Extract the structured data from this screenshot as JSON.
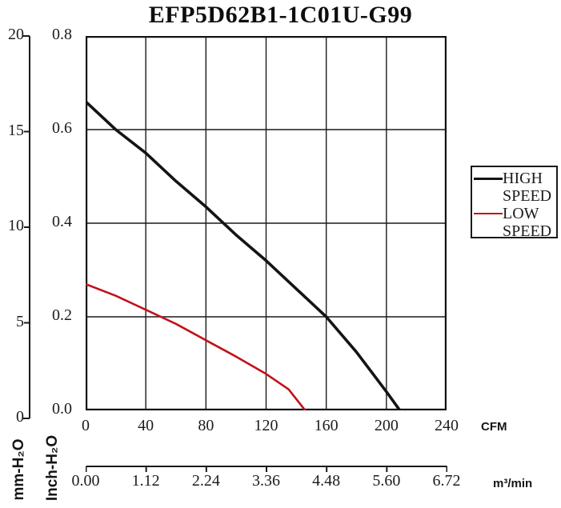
{
  "title": "EFP5D62B1-1C01U-G99",
  "colors": {
    "high_speed": "#141414",
    "low_speed": "#c1121a",
    "grid": "#1a1a1a",
    "axis": "#1a1a1a"
  },
  "axes": {
    "left_mm": {
      "label": "mm-H₂O",
      "ticks": [
        "20",
        "15",
        "10",
        "5",
        "0"
      ]
    },
    "left_inch": {
      "label": "Inch-H₂O",
      "ticks": [
        "0.8",
        "0.6",
        "0.4",
        "0.2",
        "0.0"
      ]
    },
    "bottom_cfm": {
      "unit": "CFM",
      "ticks": [
        "0",
        "40",
        "80",
        "120",
        "160",
        "200",
        "240"
      ]
    },
    "bottom_m3min": {
      "unit": "m³/min",
      "ticks": [
        "0.00",
        "1.12",
        "2.24",
        "3.36",
        "4.48",
        "5.60",
        "6.72"
      ]
    }
  },
  "legend": {
    "items": [
      {
        "label_lines": [
          "HIGH",
          "SPEED"
        ],
        "color": "#141414",
        "thickness": 3.4
      },
      {
        "label_lines": [
          "LOW",
          "SPEED"
        ],
        "color": "#c1121a",
        "thickness": 2.6
      }
    ]
  },
  "chart_data": {
    "type": "line",
    "title": "EFP5D62B1-1C01U-G99",
    "xlabel": "CFM",
    "xlabel_secondary": "m³/min",
    "ylabel": "Inch-H₂O",
    "ylabel_secondary": "mm-H₂O",
    "xlim": [
      0,
      240
    ],
    "ylim": [
      0,
      0.8
    ],
    "ylim_mm": [
      0,
      20
    ],
    "xlim_m3min": [
      0,
      6.72
    ],
    "x_ticks_cfm": [
      0,
      40,
      80,
      120,
      160,
      200,
      240
    ],
    "x_ticks_m3min": [
      0.0,
      1.12,
      2.24,
      3.36,
      4.48,
      5.6,
      6.72
    ],
    "y_ticks_inch": [
      0.0,
      0.2,
      0.4,
      0.6,
      0.8
    ],
    "y_ticks_mm": [
      0,
      5,
      10,
      15,
      20
    ],
    "grid": "on",
    "legend_position": "right-outside",
    "series": [
      {
        "name": "HIGH SPEED",
        "color": "#141414",
        "points_cfm_inchH2O": [
          [
            0,
            0.66
          ],
          [
            20,
            0.6
          ],
          [
            40,
            0.55
          ],
          [
            60,
            0.49
          ],
          [
            80,
            0.435
          ],
          [
            90,
            0.405
          ],
          [
            100,
            0.375
          ],
          [
            120,
            0.32
          ],
          [
            140,
            0.26
          ],
          [
            160,
            0.2
          ],
          [
            180,
            0.125
          ],
          [
            200,
            0.04
          ],
          [
            209,
            0.0
          ]
        ]
      },
      {
        "name": "LOW SPEED",
        "color": "#c1121a",
        "points_cfm_inchH2O": [
          [
            0,
            0.27
          ],
          [
            20,
            0.245
          ],
          [
            40,
            0.215
          ],
          [
            60,
            0.185
          ],
          [
            80,
            0.15
          ],
          [
            100,
            0.115
          ],
          [
            120,
            0.078
          ],
          [
            135,
            0.045
          ],
          [
            146,
            0.0
          ]
        ]
      }
    ]
  }
}
